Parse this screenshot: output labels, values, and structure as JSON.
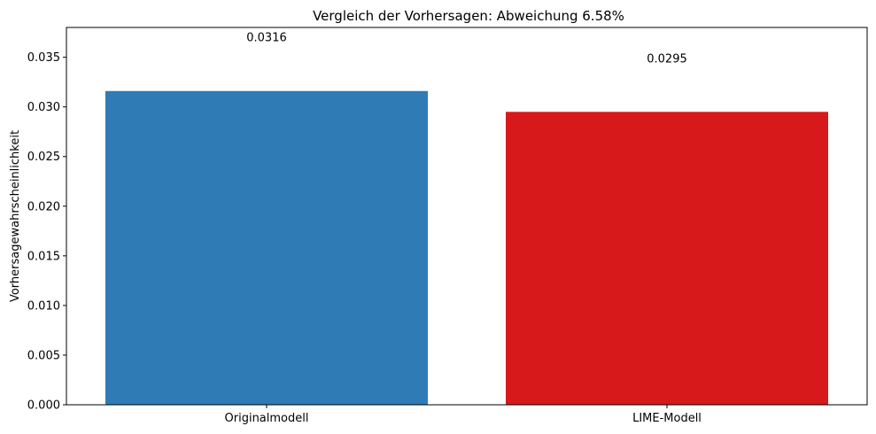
{
  "chart_data": {
    "type": "bar",
    "title": "Vergleich der Vorhersagen: Abweichung 6.58%",
    "xlabel": "",
    "ylabel": "Vorhersagewahrscheinlichkeit",
    "categories": [
      "Originalmodell",
      "LIME-Modell"
    ],
    "values": [
      0.0316,
      0.0295
    ],
    "data_labels": [
      "0.0316",
      "0.0295"
    ],
    "bar_colors": [
      "#2e7bb6",
      "#d7191c"
    ],
    "ylim": [
      0,
      0.038
    ],
    "yticks": [
      0.0,
      0.005,
      0.01,
      0.015,
      0.02,
      0.025,
      0.03,
      0.035
    ],
    "ytick_labels": [
      "0.000",
      "0.005",
      "0.010",
      "0.015",
      "0.020",
      "0.025",
      "0.030",
      "0.035"
    ],
    "grid": false,
    "legend": "none"
  }
}
